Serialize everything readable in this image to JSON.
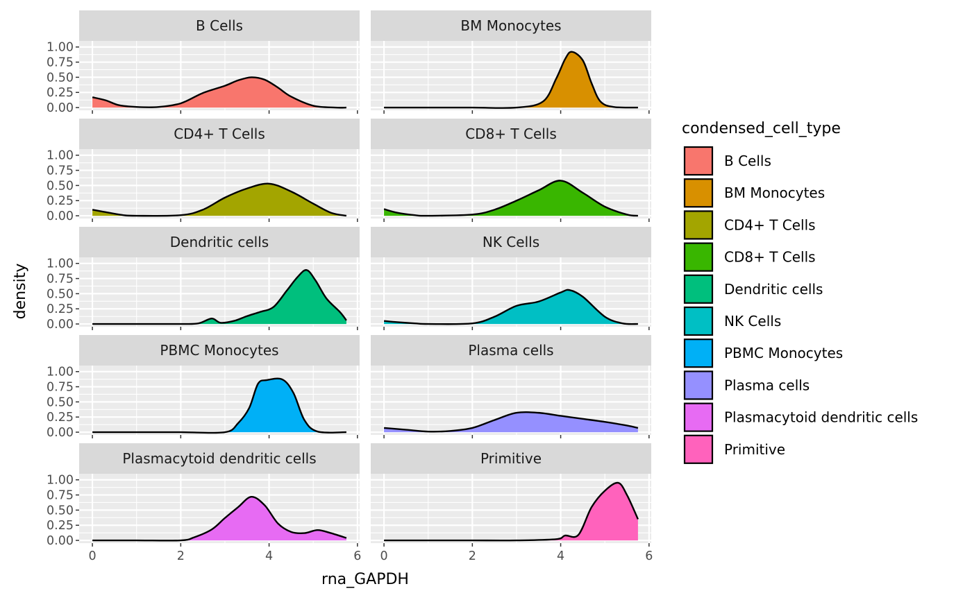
{
  "chart_data": {
    "type": "area",
    "subtype": "faceted-density",
    "xlabel": "rna_GAPDH",
    "ylabel": "density",
    "xlim": [
      -0.3,
      6.05
    ],
    "ylim": [
      -0.045,
      1.1
    ],
    "x_ticks": [
      0,
      2,
      4,
      6
    ],
    "x_tick_labels": [
      "0",
      "2",
      "4",
      "6"
    ],
    "y_ticks": [
      0,
      0.25,
      0.5,
      0.75,
      1.0
    ],
    "y_tick_labels": [
      "0.00",
      "0.25",
      "0.50",
      "0.75",
      "1.00"
    ],
    "facet_columns": 2,
    "grid": true,
    "legend": {
      "title": "condensed_cell_type",
      "position": "right"
    },
    "series": [
      {
        "name": "B Cells",
        "color": "#F8766D",
        "x": [
          0,
          0.3,
          0.6,
          1,
          1.5,
          2,
          2.5,
          3,
          3.3,
          3.6,
          3.9,
          4.2,
          4.5,
          5,
          5.5,
          5.75
        ],
        "y": [
          0.17,
          0.12,
          0.04,
          0.01,
          0.01,
          0.07,
          0.24,
          0.36,
          0.45,
          0.5,
          0.46,
          0.33,
          0.18,
          0.03,
          0.0,
          0.0
        ]
      },
      {
        "name": "BM Monocytes",
        "color": "#D89000",
        "x": [
          0,
          1,
          2,
          3,
          3.6,
          3.9,
          4.1,
          4.25,
          4.5,
          4.7,
          4.9,
          5.2,
          5.75
        ],
        "y": [
          0,
          0,
          0,
          0,
          0.1,
          0.48,
          0.8,
          0.92,
          0.78,
          0.4,
          0.1,
          0.01,
          0
        ]
      },
      {
        "name": "CD4+ T Cells",
        "color": "#A3A500",
        "x": [
          0,
          0.3,
          0.7,
          1,
          2,
          2.5,
          3,
          3.5,
          4,
          4.5,
          5,
          5.4,
          5.75
        ],
        "y": [
          0.1,
          0.06,
          0.01,
          0,
          0.01,
          0.1,
          0.3,
          0.45,
          0.53,
          0.4,
          0.2,
          0.05,
          0
        ]
      },
      {
        "name": "CD8+ T Cells",
        "color": "#39B600",
        "x": [
          0,
          0.3,
          0.7,
          1,
          2,
          2.5,
          3,
          3.5,
          4,
          4.5,
          5,
          5.5,
          5.75
        ],
        "y": [
          0.11,
          0.05,
          0.01,
          0,
          0.02,
          0.1,
          0.25,
          0.42,
          0.58,
          0.38,
          0.15,
          0.02,
          0
        ]
      },
      {
        "name": "Dendritic cells",
        "color": "#00BF7D",
        "x": [
          0,
          1,
          2,
          2.4,
          2.7,
          2.9,
          3.2,
          3.5,
          3.8,
          4.1,
          4.4,
          4.65,
          4.85,
          5.05,
          5.3,
          5.6,
          5.75
        ],
        "y": [
          0,
          0,
          0,
          0.01,
          0.09,
          0.02,
          0.05,
          0.13,
          0.2,
          0.28,
          0.55,
          0.78,
          0.89,
          0.72,
          0.42,
          0.2,
          0.06
        ]
      },
      {
        "name": "NK Cells",
        "color": "#00BFC4",
        "x": [
          0,
          0.3,
          0.7,
          1,
          2,
          2.5,
          3,
          3.5,
          4,
          4.2,
          4.5,
          5,
          5.4,
          5.75
        ],
        "y": [
          0.05,
          0.03,
          0.01,
          0,
          0.01,
          0.12,
          0.3,
          0.37,
          0.52,
          0.56,
          0.45,
          0.12,
          0.01,
          0
        ]
      },
      {
        "name": "PBMC Monocytes",
        "color": "#00B0F6",
        "x": [
          0,
          1,
          2,
          3,
          3.3,
          3.55,
          3.75,
          3.95,
          4.3,
          4.55,
          4.8,
          5.1,
          5.75
        ],
        "y": [
          0,
          0,
          0,
          0,
          0.15,
          0.4,
          0.8,
          0.86,
          0.87,
          0.65,
          0.2,
          0.01,
          0
        ]
      },
      {
        "name": "Plasma cells",
        "color": "#9590FF",
        "x": [
          0,
          0.5,
          1,
          1.5,
          2,
          2.5,
          3,
          3.5,
          4,
          4.5,
          5,
          5.5,
          5.75
        ],
        "y": [
          0.07,
          0.04,
          0.01,
          0.02,
          0.07,
          0.2,
          0.32,
          0.32,
          0.27,
          0.22,
          0.17,
          0.11,
          0.07
        ]
      },
      {
        "name": "Plasmacytoid dendritic cells",
        "color": "#E76BF3",
        "x": [
          0,
          1,
          2,
          2.3,
          2.7,
          3,
          3.3,
          3.6,
          3.9,
          4.2,
          4.5,
          4.8,
          5.1,
          5.4,
          5.75
        ],
        "y": [
          0,
          0,
          0,
          0.05,
          0.18,
          0.37,
          0.55,
          0.72,
          0.58,
          0.28,
          0.14,
          0.12,
          0.17,
          0.12,
          0.04
        ]
      },
      {
        "name": "Primitive",
        "color": "#FF62BC",
        "x": [
          0,
          1,
          2,
          3,
          3.9,
          4.1,
          4.4,
          4.7,
          5.0,
          5.3,
          5.5,
          5.75
        ],
        "y": [
          0,
          0,
          0,
          0,
          0.02,
          0.08,
          0.09,
          0.55,
          0.82,
          0.95,
          0.75,
          0.35
        ]
      }
    ]
  }
}
